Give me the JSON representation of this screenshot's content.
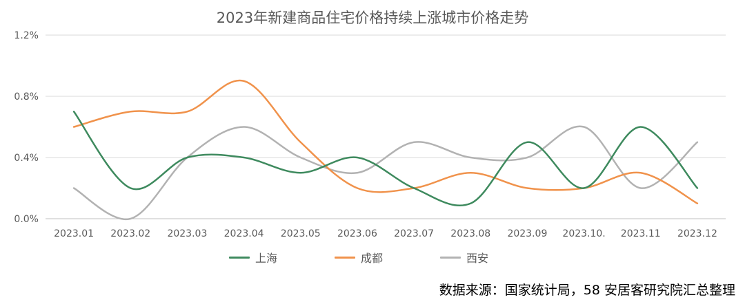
{
  "chart_data": {
    "type": "line",
    "title": "2023年新建商品住宅价格持续上涨城市价格走势",
    "categories": [
      "2023.01",
      "2023.02",
      "2023.03",
      "2023.04",
      "2023.05",
      "2023.06",
      "2023.07",
      "2023.08",
      "2023.09",
      "2023.10.",
      "2023.11",
      "2023.12"
    ],
    "y_ticks": [
      "0.0%",
      "0.4%",
      "0.8%",
      "1.2%"
    ],
    "ylim": [
      0,
      1.2
    ],
    "grid": true,
    "legend_position": "bottom",
    "series": [
      {
        "name": "上海",
        "color": "#3e8a5e",
        "values": [
          0.7,
          0.2,
          0.4,
          0.4,
          0.3,
          0.4,
          0.2,
          0.1,
          0.5,
          0.2,
          0.6,
          0.2
        ]
      },
      {
        "name": "成都",
        "color": "#f0924b",
        "values": [
          0.6,
          0.7,
          0.7,
          0.9,
          0.5,
          0.2,
          0.2,
          0.3,
          0.2,
          0.2,
          0.3,
          0.1
        ]
      },
      {
        "name": "西安",
        "color": "#b2b2b2",
        "values": [
          0.2,
          0.0,
          0.4,
          0.6,
          0.4,
          0.3,
          0.5,
          0.4,
          0.4,
          0.6,
          0.2,
          0.5
        ]
      }
    ]
  },
  "source_note": "数据来源：国家统计局，58 安居客研究院汇总整理"
}
